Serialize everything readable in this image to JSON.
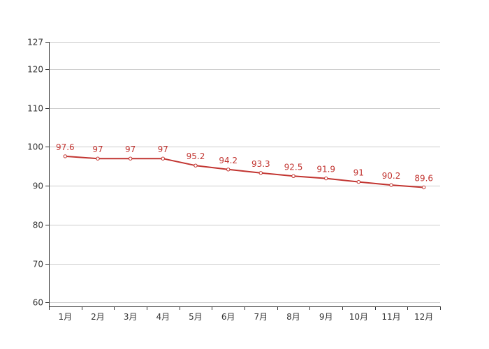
{
  "chart_data": {
    "type": "line",
    "categories": [
      "1月",
      "2月",
      "3月",
      "4月",
      "5月",
      "6月",
      "7月",
      "8月",
      "9月",
      "10月",
      "11月",
      "12月"
    ],
    "series": [
      {
        "values": [
          97.6,
          97,
          97,
          97,
          95.2,
          94.2,
          93.3,
          92.5,
          91.9,
          91,
          90.2,
          89.6
        ],
        "color": "#c23531"
      }
    ],
    "data_labels": [
      "97.6",
      "97",
      "97",
      "97",
      "95.2",
      "94.2",
      "93.3",
      "92.5",
      "91.9",
      "91",
      "90.2",
      "89.6"
    ],
    "y_ticks": [
      "60",
      "70",
      "80",
      "90",
      "100",
      "110",
      "120",
      "127"
    ],
    "ylim": [
      59,
      127
    ],
    "grid": true,
    "title": "",
    "xlabel": "",
    "ylabel": ""
  }
}
